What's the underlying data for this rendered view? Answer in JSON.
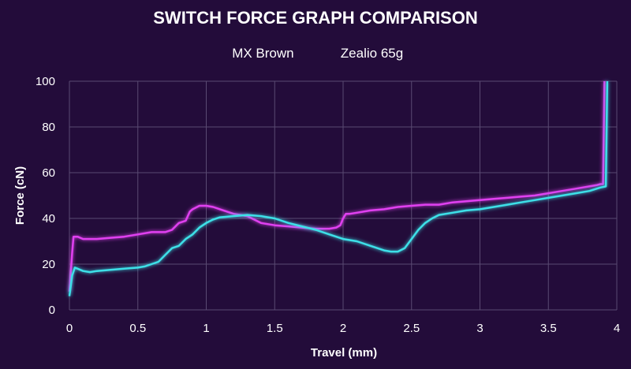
{
  "chart_data": {
    "type": "line",
    "title": "SWITCH FORCE GRAPH COMPARISON",
    "xlabel": "Travel (mm)",
    "ylabel": "Force (cN)",
    "xlim": [
      0,
      4
    ],
    "ylim": [
      0,
      100
    ],
    "x_ticks": [
      "0",
      "0.5",
      "1",
      "1.5",
      "2",
      "2.5",
      "3",
      "3.5",
      "4"
    ],
    "y_ticks": [
      "0",
      "20",
      "40",
      "60",
      "80",
      "100"
    ],
    "grid": true,
    "legend_position": "top-center",
    "series": [
      {
        "name": "MX Brown",
        "color": "#e040f0",
        "x": [
          0,
          0.02,
          0.03,
          0.06,
          0.1,
          0.2,
          0.3,
          0.4,
          0.5,
          0.6,
          0.7,
          0.75,
          0.8,
          0.85,
          0.88,
          0.9,
          0.95,
          1.0,
          1.05,
          1.1,
          1.15,
          1.2,
          1.3,
          1.4,
          1.5,
          1.6,
          1.7,
          1.8,
          1.9,
          1.95,
          1.98,
          2.0,
          2.02,
          2.05,
          2.1,
          2.2,
          2.3,
          2.4,
          2.5,
          2.6,
          2.7,
          2.8,
          2.9,
          3.0,
          3.1,
          3.2,
          3.3,
          3.4,
          3.5,
          3.6,
          3.7,
          3.8,
          3.85,
          3.88,
          3.9,
          3.91
        ],
        "y": [
          8,
          25,
          32,
          32,
          31,
          31,
          31.5,
          32,
          33,
          34,
          34,
          35,
          38,
          39,
          43,
          44,
          45.5,
          45.5,
          45,
          44,
          43,
          42,
          41,
          38,
          37,
          36.5,
          36,
          35.5,
          35.5,
          36,
          37,
          40,
          42,
          42,
          42.5,
          43.5,
          44,
          45,
          45.5,
          46,
          46,
          47,
          47.5,
          48,
          48.5,
          49,
          49.5,
          50,
          51,
          52,
          53,
          54,
          54.5,
          55,
          55,
          100
        ]
      },
      {
        "name": "Zealio 65g",
        "color": "#3ee0e8",
        "x": [
          0,
          0.02,
          0.04,
          0.06,
          0.1,
          0.15,
          0.2,
          0.3,
          0.4,
          0.5,
          0.55,
          0.6,
          0.65,
          0.7,
          0.75,
          0.8,
          0.85,
          0.9,
          0.95,
          1.0,
          1.05,
          1.1,
          1.2,
          1.3,
          1.4,
          1.5,
          1.6,
          1.7,
          1.8,
          1.9,
          2.0,
          2.1,
          2.2,
          2.3,
          2.35,
          2.4,
          2.45,
          2.5,
          2.55,
          2.6,
          2.65,
          2.7,
          2.8,
          2.9,
          3.0,
          3.1,
          3.2,
          3.3,
          3.4,
          3.5,
          3.6,
          3.7,
          3.8,
          3.88,
          3.92,
          3.93
        ],
        "y": [
          6,
          15,
          18.5,
          18,
          17,
          16.5,
          17,
          17.5,
          18,
          18.5,
          19,
          20,
          21,
          24,
          27,
          28,
          31,
          33,
          36,
          38,
          39.5,
          40.5,
          41,
          41.5,
          41,
          40,
          38,
          36.5,
          35,
          33,
          31,
          30,
          28,
          26,
          25.5,
          25.5,
          27,
          31,
          35,
          38,
          40,
          41.5,
          42.5,
          43.5,
          44,
          45,
          46,
          47,
          48,
          49,
          50,
          51,
          52,
          53.5,
          54,
          100
        ]
      }
    ]
  }
}
